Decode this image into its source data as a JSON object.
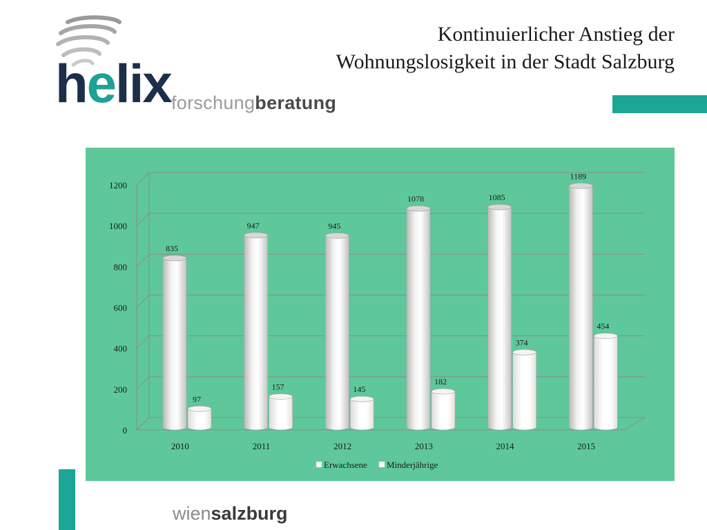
{
  "header": {
    "title_line1": "Kontinuierlicher Anstieg der",
    "title_line2": "Wohnungslosigkeit in der Stadt Salzburg"
  },
  "logo": {
    "name_prefix": "h",
    "name_accent": "e",
    "name_suffix": "lix",
    "sub_light": "forschung",
    "sub_bold": "beratung"
  },
  "footer": {
    "light": "wien",
    "bold": "salzburg"
  },
  "colors": {
    "accent": "#1aa595",
    "chart_background": "#5ec89a",
    "logo_dark": "#1c2f4a"
  },
  "chart_data": {
    "type": "bar",
    "title": "",
    "xlabel": "",
    "ylabel": "",
    "categories": [
      "2010",
      "2011",
      "2012",
      "2013",
      "2014",
      "2015"
    ],
    "series": [
      {
        "name": "Erwachsene",
        "values": [
          835,
          947,
          945,
          1078,
          1085,
          1189
        ]
      },
      {
        "name": "Minderjährige",
        "values": [
          97,
          157,
          145,
          182,
          374,
          454
        ]
      }
    ],
    "ylim": [
      0,
      1200
    ],
    "yticks": [
      0,
      200,
      400,
      600,
      800,
      1000,
      1200
    ],
    "grid": true,
    "legend_position": "bottom",
    "style": "3d-cylinder"
  }
}
